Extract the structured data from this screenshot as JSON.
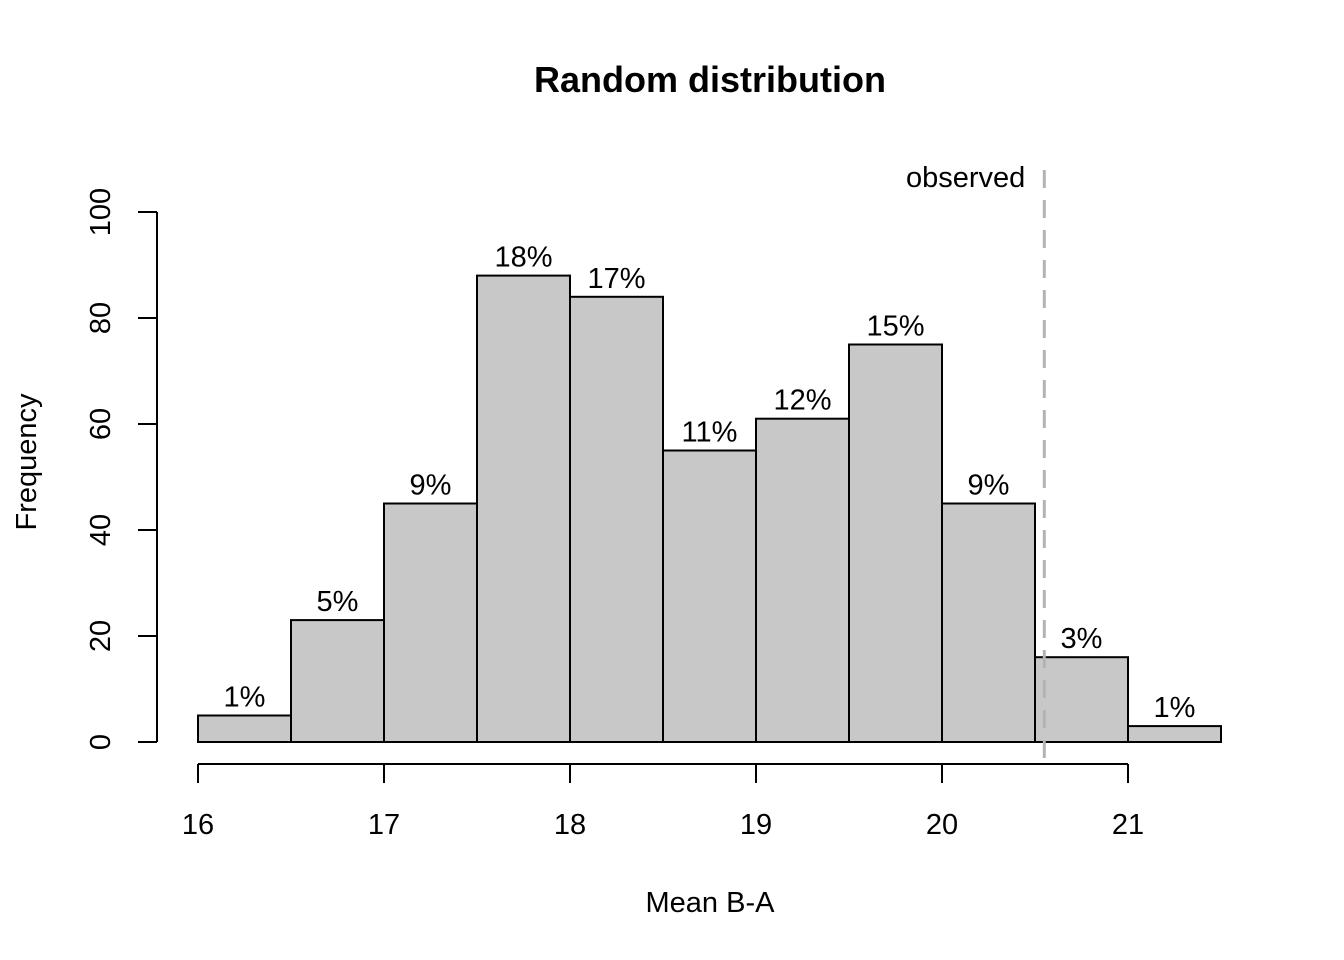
{
  "chart_data": {
    "type": "bar",
    "title": "Random distribution",
    "xlabel": "Mean B-A",
    "ylabel": "Frequency",
    "bin_edges": [
      16,
      16.5,
      17,
      17.5,
      18,
      18.5,
      19,
      19.5,
      20,
      20.5,
      21,
      21.5
    ],
    "values": [
      5,
      23,
      45,
      88,
      84,
      55,
      61,
      75,
      45,
      16,
      3
    ],
    "bar_labels": [
      "1%",
      "5%",
      "9%",
      "18%",
      "17%",
      "11%",
      "12%",
      "15%",
      "9%",
      "3%",
      "1%"
    ],
    "xlim": [
      16,
      21.5
    ],
    "ylim": [
      0,
      100
    ],
    "x_ticks": [
      16,
      17,
      18,
      19,
      20,
      21
    ],
    "y_ticks": [
      0,
      20,
      40,
      60,
      80,
      100
    ],
    "observed": {
      "value": 20.55,
      "label": "observed"
    },
    "grid": false,
    "colors": {
      "bar_fill": "#c8c8c8",
      "bar_stroke": "#000000",
      "observed_line": "#b3b3b3"
    }
  }
}
